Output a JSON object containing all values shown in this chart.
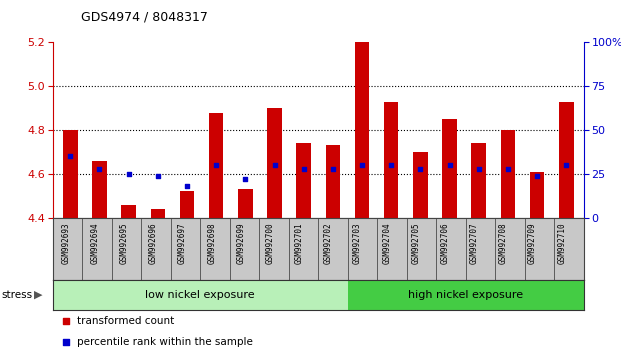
{
  "title": "GDS4974 / 8048317",
  "samples": [
    "GSM992693",
    "GSM992694",
    "GSM992695",
    "GSM992696",
    "GSM992697",
    "GSM992698",
    "GSM992699",
    "GSM992700",
    "GSM992701",
    "GSM992702",
    "GSM992703",
    "GSM992704",
    "GSM992705",
    "GSM992706",
    "GSM992707",
    "GSM992708",
    "GSM992709",
    "GSM992710"
  ],
  "transformed_count": [
    4.8,
    4.66,
    4.46,
    4.44,
    4.52,
    4.88,
    4.53,
    4.9,
    4.74,
    4.73,
    5.2,
    4.93,
    4.7,
    4.85,
    4.74,
    4.8,
    4.61,
    4.93
  ],
  "percentile_rank": [
    35,
    28,
    25,
    24,
    18,
    30,
    22,
    30,
    28,
    28,
    30,
    30,
    28,
    30,
    28,
    28,
    24,
    30
  ],
  "ylim_left": [
    4.4,
    5.2
  ],
  "ylim_right": [
    0,
    100
  ],
  "yticks_left": [
    4.4,
    4.6,
    4.8,
    5.0,
    5.2
  ],
  "yticks_right": [
    0,
    25,
    50,
    75,
    100
  ],
  "ytick_labels_right": [
    "0",
    "25",
    "50",
    "75",
    "100%"
  ],
  "bar_color": "#cc0000",
  "dot_color": "#0000cc",
  "bg_color": "#ffffff",
  "label_bg_color": "#c8c8c8",
  "low_nickel_color": "#b8f0b8",
  "high_nickel_color": "#44cc44",
  "low_nickel_label": "low nickel exposure",
  "high_nickel_label": "high nickel exposure",
  "stress_label": "stress",
  "legend_transformed": "transformed count",
  "legend_percentile": "percentile rank within the sample",
  "n_low": 10,
  "n_high": 8,
  "bar_width": 0.5,
  "title_color": "#000000",
  "left_axis_color": "#cc0000",
  "right_axis_color": "#0000cc",
  "grid_yticks": [
    4.6,
    4.8,
    5.0
  ]
}
